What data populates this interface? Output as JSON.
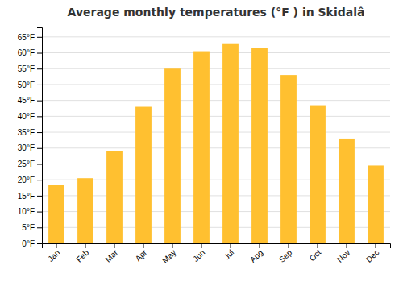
{
  "chart_data": {
    "type": "bar",
    "title": "Average monthly temperatures (°F ) in Skidalâ",
    "categories": [
      "Jan",
      "Feb",
      "Mar",
      "Apr",
      "May",
      "Jun",
      "Jul",
      "Aug",
      "Sep",
      "Oct",
      "Nov",
      "Dec"
    ],
    "values": [
      18.5,
      20.5,
      29,
      43,
      55,
      60.5,
      63,
      61.5,
      53,
      43.5,
      33,
      24.5
    ],
    "color": "#FFC030",
    "ylim": [
      0,
      68
    ],
    "yticks": [
      {
        "value": 0,
        "label": "0°F"
      },
      {
        "value": 5,
        "label": "5°F"
      },
      {
        "value": 10,
        "label": "10°F"
      },
      {
        "value": 15,
        "label": "15°F"
      },
      {
        "value": 20,
        "label": "20°F"
      },
      {
        "value": 25,
        "label": "25°F"
      },
      {
        "value": 30,
        "label": "30°F"
      },
      {
        "value": 35,
        "label": "35°F"
      },
      {
        "value": 40,
        "label": "40°F"
      },
      {
        "value": 45,
        "label": "45°F"
      },
      {
        "value": 50,
        "label": "50°F"
      },
      {
        "value": 55,
        "label": "55°F"
      },
      {
        "value": 60,
        "label": "60°F"
      },
      {
        "value": 65,
        "label": "65°F"
      }
    ],
    "grid": true
  }
}
